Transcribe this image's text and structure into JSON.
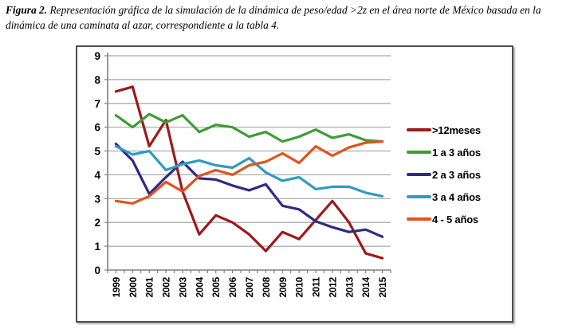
{
  "figure_caption": {
    "label": "Figura 2.",
    "text": " Representación gráfica de la simulación de la dinámica de peso/edad >2z en el área norte de México basada en la dinámica de una caminata al azar, correspondiente a la tabla 4."
  },
  "chart_data": {
    "type": "line",
    "x": [
      "1999",
      "2000",
      "2001",
      "2002",
      "2003",
      "2004",
      "2005",
      "2006",
      "2007",
      "2008",
      "2009",
      "2010",
      "2011",
      "2012",
      "2013",
      "2014",
      "2015"
    ],
    "series": [
      {
        "name": ">12meses",
        "color": "#9c1a1c",
        "values": [
          7.5,
          7.7,
          5.2,
          6.3,
          3.3,
          1.5,
          2.3,
          2.0,
          1.5,
          0.8,
          1.6,
          1.3,
          2.1,
          2.9,
          2.0,
          0.7,
          0.5
        ]
      },
      {
        "name": "1 a 3 años",
        "color": "#3f9c35",
        "values": [
          6.5,
          6.0,
          6.55,
          6.2,
          6.5,
          5.8,
          6.1,
          6.0,
          5.6,
          5.8,
          5.4,
          5.6,
          5.9,
          5.55,
          5.7,
          5.45,
          5.4
        ]
      },
      {
        "name": "2 a 3 años",
        "color": "#2e2b85",
        "values": [
          5.3,
          4.6,
          3.2,
          3.9,
          4.55,
          3.85,
          3.8,
          3.55,
          3.35,
          3.6,
          2.7,
          2.55,
          2.05,
          1.8,
          1.6,
          1.7,
          1.4
        ]
      },
      {
        "name": "3 a 4 años",
        "color": "#2e9bc4",
        "values": [
          5.2,
          4.85,
          5.0,
          4.2,
          4.45,
          4.6,
          4.4,
          4.3,
          4.7,
          4.1,
          3.75,
          3.9,
          3.4,
          3.5,
          3.5,
          3.25,
          3.1
        ]
      },
      {
        "name": "4 - 5 años",
        "color": "#e2531d",
        "values": [
          2.9,
          2.8,
          3.1,
          3.7,
          3.3,
          3.95,
          4.2,
          4.0,
          4.4,
          4.55,
          4.9,
          4.5,
          5.2,
          4.8,
          5.15,
          5.35,
          5.4
        ]
      }
    ],
    "title": "",
    "xlabel": "",
    "ylabel": "",
    "ylim": [
      0,
      9
    ],
    "yticks": [
      0,
      1,
      2,
      3,
      4,
      5,
      6,
      7,
      8,
      9
    ],
    "grid": true,
    "gridline_color": "#a6a6a6",
    "axis_color": "#7f7f7f",
    "legend_position": "right"
  }
}
